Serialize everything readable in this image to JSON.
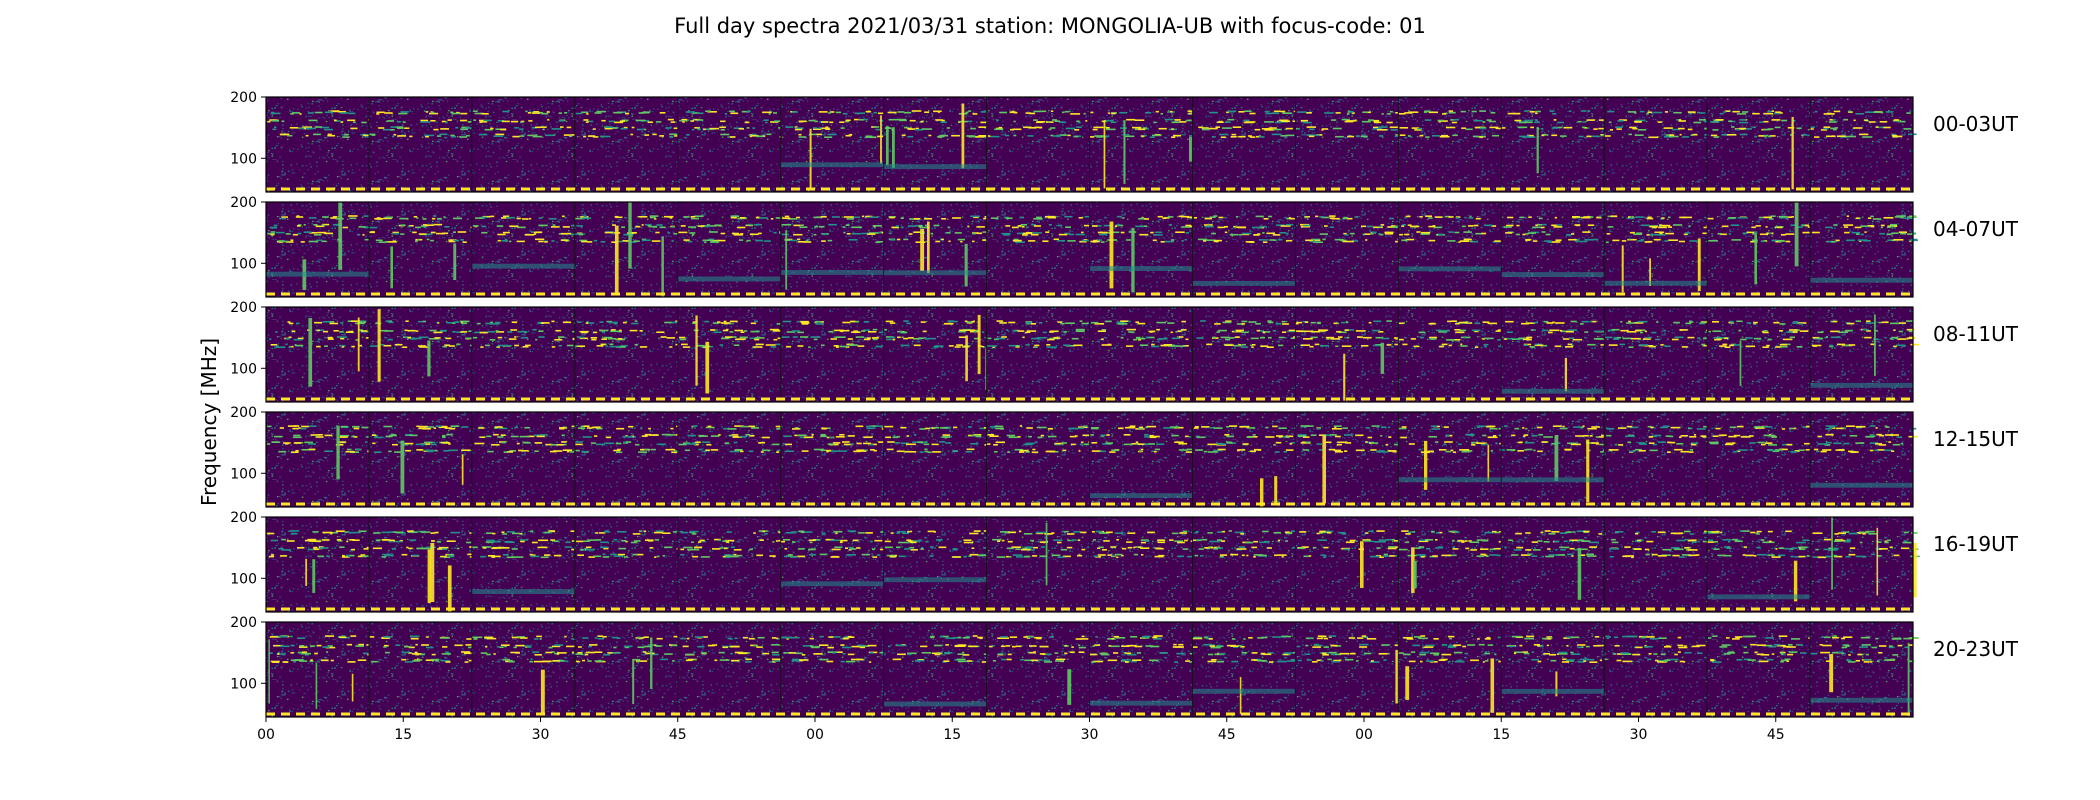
{
  "chart_data": {
    "type": "heatmap",
    "title": "Full day spectra 2021/03/31 station: MONGOLIA-UB with focus-code: 01",
    "ylabel": "Frequency [MHz]",
    "xlabel": "",
    "ylim": [
      45,
      200
    ],
    "yticks": [
      100,
      200
    ],
    "xticks": [
      "00",
      "15",
      "30",
      "45",
      "00",
      "15",
      "30",
      "45",
      "00",
      "15",
      "30",
      "45"
    ],
    "segments_per_row": 16,
    "segment_minutes": 15,
    "colormap": [
      "#440154",
      "#3b528b",
      "#21918c",
      "#5ec962",
      "#fde725"
    ],
    "rows": [
      {
        "label": "00-03UT"
      },
      {
        "label": "04-07UT"
      },
      {
        "label": "08-11UT"
      },
      {
        "label": "12-15UT"
      },
      {
        "label": "16-19UT"
      },
      {
        "label": "20-23UT"
      }
    ]
  }
}
